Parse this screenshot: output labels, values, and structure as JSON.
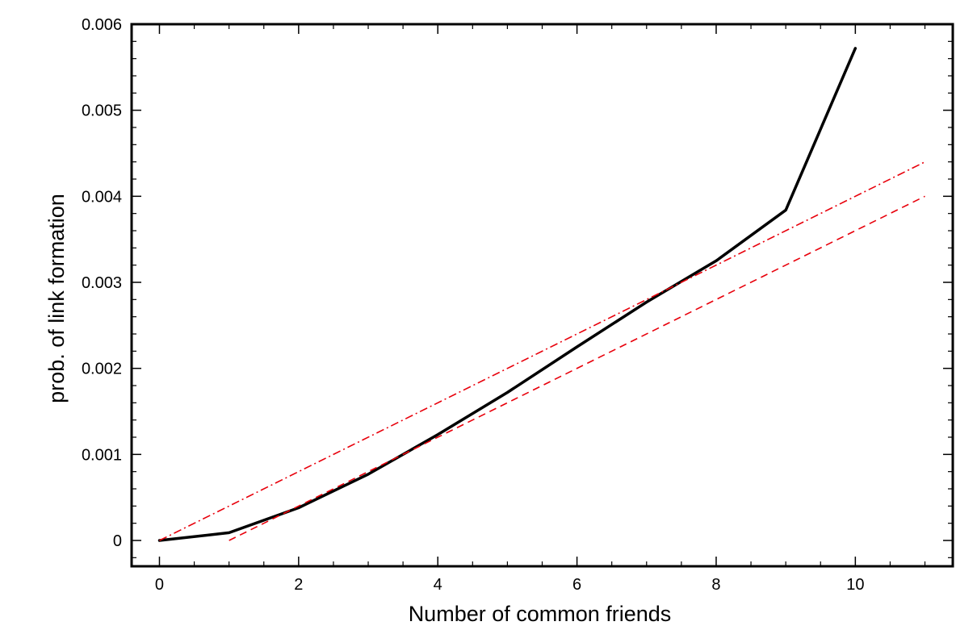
{
  "chart_data": {
    "type": "line",
    "title": "",
    "xlabel": "Number of common friends",
    "ylabel": "prob. of link formation",
    "xlim": [
      -0.4,
      11.4
    ],
    "ylim": [
      -0.0003,
      0.006
    ],
    "xticks": [
      0,
      2,
      4,
      6,
      8,
      10
    ],
    "xtick_labels": [
      "0",
      "2",
      "4",
      "6",
      "8",
      "10"
    ],
    "yticks": [
      0,
      0.001,
      0.002,
      0.003,
      0.004,
      0.005,
      0.006
    ],
    "ytick_labels": [
      "0",
      "0.001",
      "0.002",
      "0.003",
      "0.004",
      "0.005",
      "0.006"
    ],
    "grid": false,
    "legend": "none",
    "series": [
      {
        "style": "solid",
        "color": "#000000",
        "x": [
          0,
          1,
          2,
          3,
          4,
          5,
          6,
          7,
          8,
          9,
          10
        ],
        "y": [
          0,
          9e-05,
          0.00038,
          0.00077,
          0.00123,
          0.00172,
          0.00225,
          0.00277,
          0.00325,
          0.00384,
          0.00572
        ]
      },
      {
        "style": "dash-dot",
        "color": "#e8000b",
        "x": [
          0,
          11
        ],
        "y": [
          0,
          0.0044
        ]
      },
      {
        "style": "dashed",
        "color": "#e8000b",
        "x": [
          1,
          11
        ],
        "y": [
          0,
          0.004
        ]
      }
    ]
  }
}
